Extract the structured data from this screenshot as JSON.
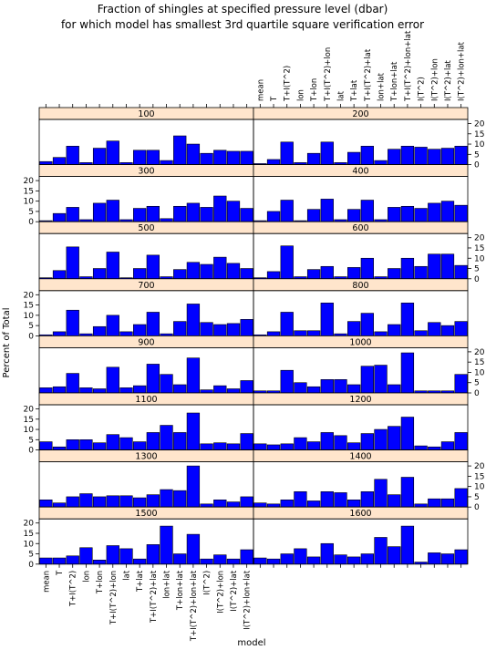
{
  "chart_data": {
    "type": "bar",
    "title": "Fraction of shingles at specified pressure level (dbar)",
    "subtitle": "for which model has smallest 3rd quartile square verification error",
    "xlabel": "model",
    "ylabel": "Percent of Total",
    "ylim": [
      0,
      22
    ],
    "yticks": [
      0,
      5,
      10,
      15,
      20
    ],
    "grid": false,
    "bar_color": "#0000ff",
    "strip_color": "#ffe5cc",
    "categories": [
      "mean",
      "T",
      "T+I(T^2)",
      "lon",
      "T+lon",
      "T+I(T^2)+lon",
      "lat",
      "T+lat",
      "T+I(T^2)+lat",
      "lon+lat",
      "T+lon+lat",
      "T+I(T^2)+lon+lat",
      "I(T^2)",
      "I(T^2)+lon",
      "I(T^2)+lat",
      "I(T^2)+lon+lat"
    ],
    "panels": [
      {
        "label": "100",
        "values": [
          1.5,
          3.5,
          9.0,
          1.0,
          8.0,
          11.5,
          1.0,
          7.0,
          7.0,
          2.0,
          14.0,
          10.0,
          5.5,
          7.0,
          6.5,
          6.5
        ]
      },
      {
        "label": "200",
        "values": [
          0.5,
          2.5,
          11.0,
          1.0,
          5.5,
          11.0,
          1.0,
          6.0,
          9.0,
          2.0,
          7.5,
          9.0,
          8.5,
          7.5,
          8.0,
          9.0
        ]
      },
      {
        "label": "300",
        "values": [
          0.5,
          4.0,
          7.0,
          1.0,
          9.0,
          10.5,
          1.0,
          6.5,
          7.5,
          1.5,
          7.5,
          9.0,
          7.0,
          12.5,
          10.0,
          6.5
        ]
      },
      {
        "label": "400",
        "values": [
          0.5,
          5.0,
          10.5,
          0.5,
          6.0,
          11.0,
          1.0,
          6.0,
          10.5,
          1.0,
          7.0,
          7.5,
          6.5,
          9.0,
          10.0,
          8.0
        ]
      },
      {
        "label": "500",
        "values": [
          0.5,
          4.0,
          15.5,
          1.0,
          5.0,
          13.0,
          0.5,
          5.0,
          11.5,
          1.0,
          4.5,
          8.0,
          7.0,
          10.5,
          7.5,
          5.0
        ]
      },
      {
        "label": "600",
        "values": [
          0.5,
          3.5,
          16.0,
          1.0,
          4.5,
          6.0,
          1.0,
          5.5,
          10.0,
          1.0,
          5.0,
          10.0,
          6.0,
          12.0,
          12.0,
          6.5
        ]
      },
      {
        "label": "700",
        "values": [
          0.5,
          2.0,
          12.5,
          1.0,
          4.5,
          10.0,
          2.0,
          5.5,
          11.5,
          1.0,
          7.0,
          15.5,
          6.5,
          5.5,
          6.0,
          8.0
        ]
      },
      {
        "label": "800",
        "values": [
          0.5,
          2.0,
          11.5,
          2.5,
          2.5,
          16.0,
          1.0,
          7.0,
          11.0,
          2.0,
          5.5,
          16.0,
          2.5,
          6.5,
          5.0,
          7.0
        ]
      },
      {
        "label": "900",
        "values": [
          2.5,
          3.0,
          9.5,
          2.5,
          2.0,
          12.5,
          2.5,
          3.5,
          14.0,
          9.0,
          4.0,
          17.0,
          1.5,
          3.5,
          2.0,
          6.0
        ]
      },
      {
        "label": "1000",
        "values": [
          1.0,
          1.0,
          11.0,
          5.0,
          3.0,
          6.5,
          6.5,
          4.0,
          13.0,
          13.5,
          4.0,
          19.5,
          1.0,
          1.0,
          1.0,
          9.0
        ]
      },
      {
        "label": "1100",
        "values": [
          4.0,
          1.5,
          5.0,
          5.0,
          3.5,
          7.5,
          6.0,
          4.0,
          8.5,
          12.0,
          8.5,
          18.0,
          3.0,
          3.5,
          3.0,
          8.0
        ]
      },
      {
        "label": "1200",
        "values": [
          3.0,
          2.5,
          3.0,
          6.0,
          4.0,
          8.5,
          7.0,
          3.5,
          8.0,
          10.0,
          11.5,
          16.0,
          2.0,
          1.5,
          4.0,
          8.5
        ]
      },
      {
        "label": "1300",
        "values": [
          3.5,
          2.0,
          5.0,
          6.5,
          5.0,
          5.5,
          5.5,
          4.5,
          6.0,
          8.5,
          8.0,
          20.0,
          1.5,
          3.5,
          2.5,
          5.0
        ]
      },
      {
        "label": "1400",
        "values": [
          2.0,
          1.5,
          3.5,
          7.5,
          3.0,
          7.5,
          7.0,
          3.5,
          7.5,
          13.5,
          6.0,
          14.5,
          1.5,
          4.0,
          4.0,
          9.0
        ]
      },
      {
        "label": "1500",
        "values": [
          3.0,
          3.0,
          4.0,
          8.0,
          2.0,
          9.0,
          7.5,
          2.5,
          9.5,
          18.5,
          5.0,
          14.5,
          2.5,
          4.5,
          2.5,
          7.0
        ]
      },
      {
        "label": "1600",
        "values": [
          3.0,
          2.5,
          5.0,
          7.5,
          3.5,
          10.0,
          4.5,
          3.5,
          5.0,
          13.0,
          8.5,
          18.5,
          1.0,
          5.5,
          5.0,
          7.0
        ]
      }
    ]
  }
}
